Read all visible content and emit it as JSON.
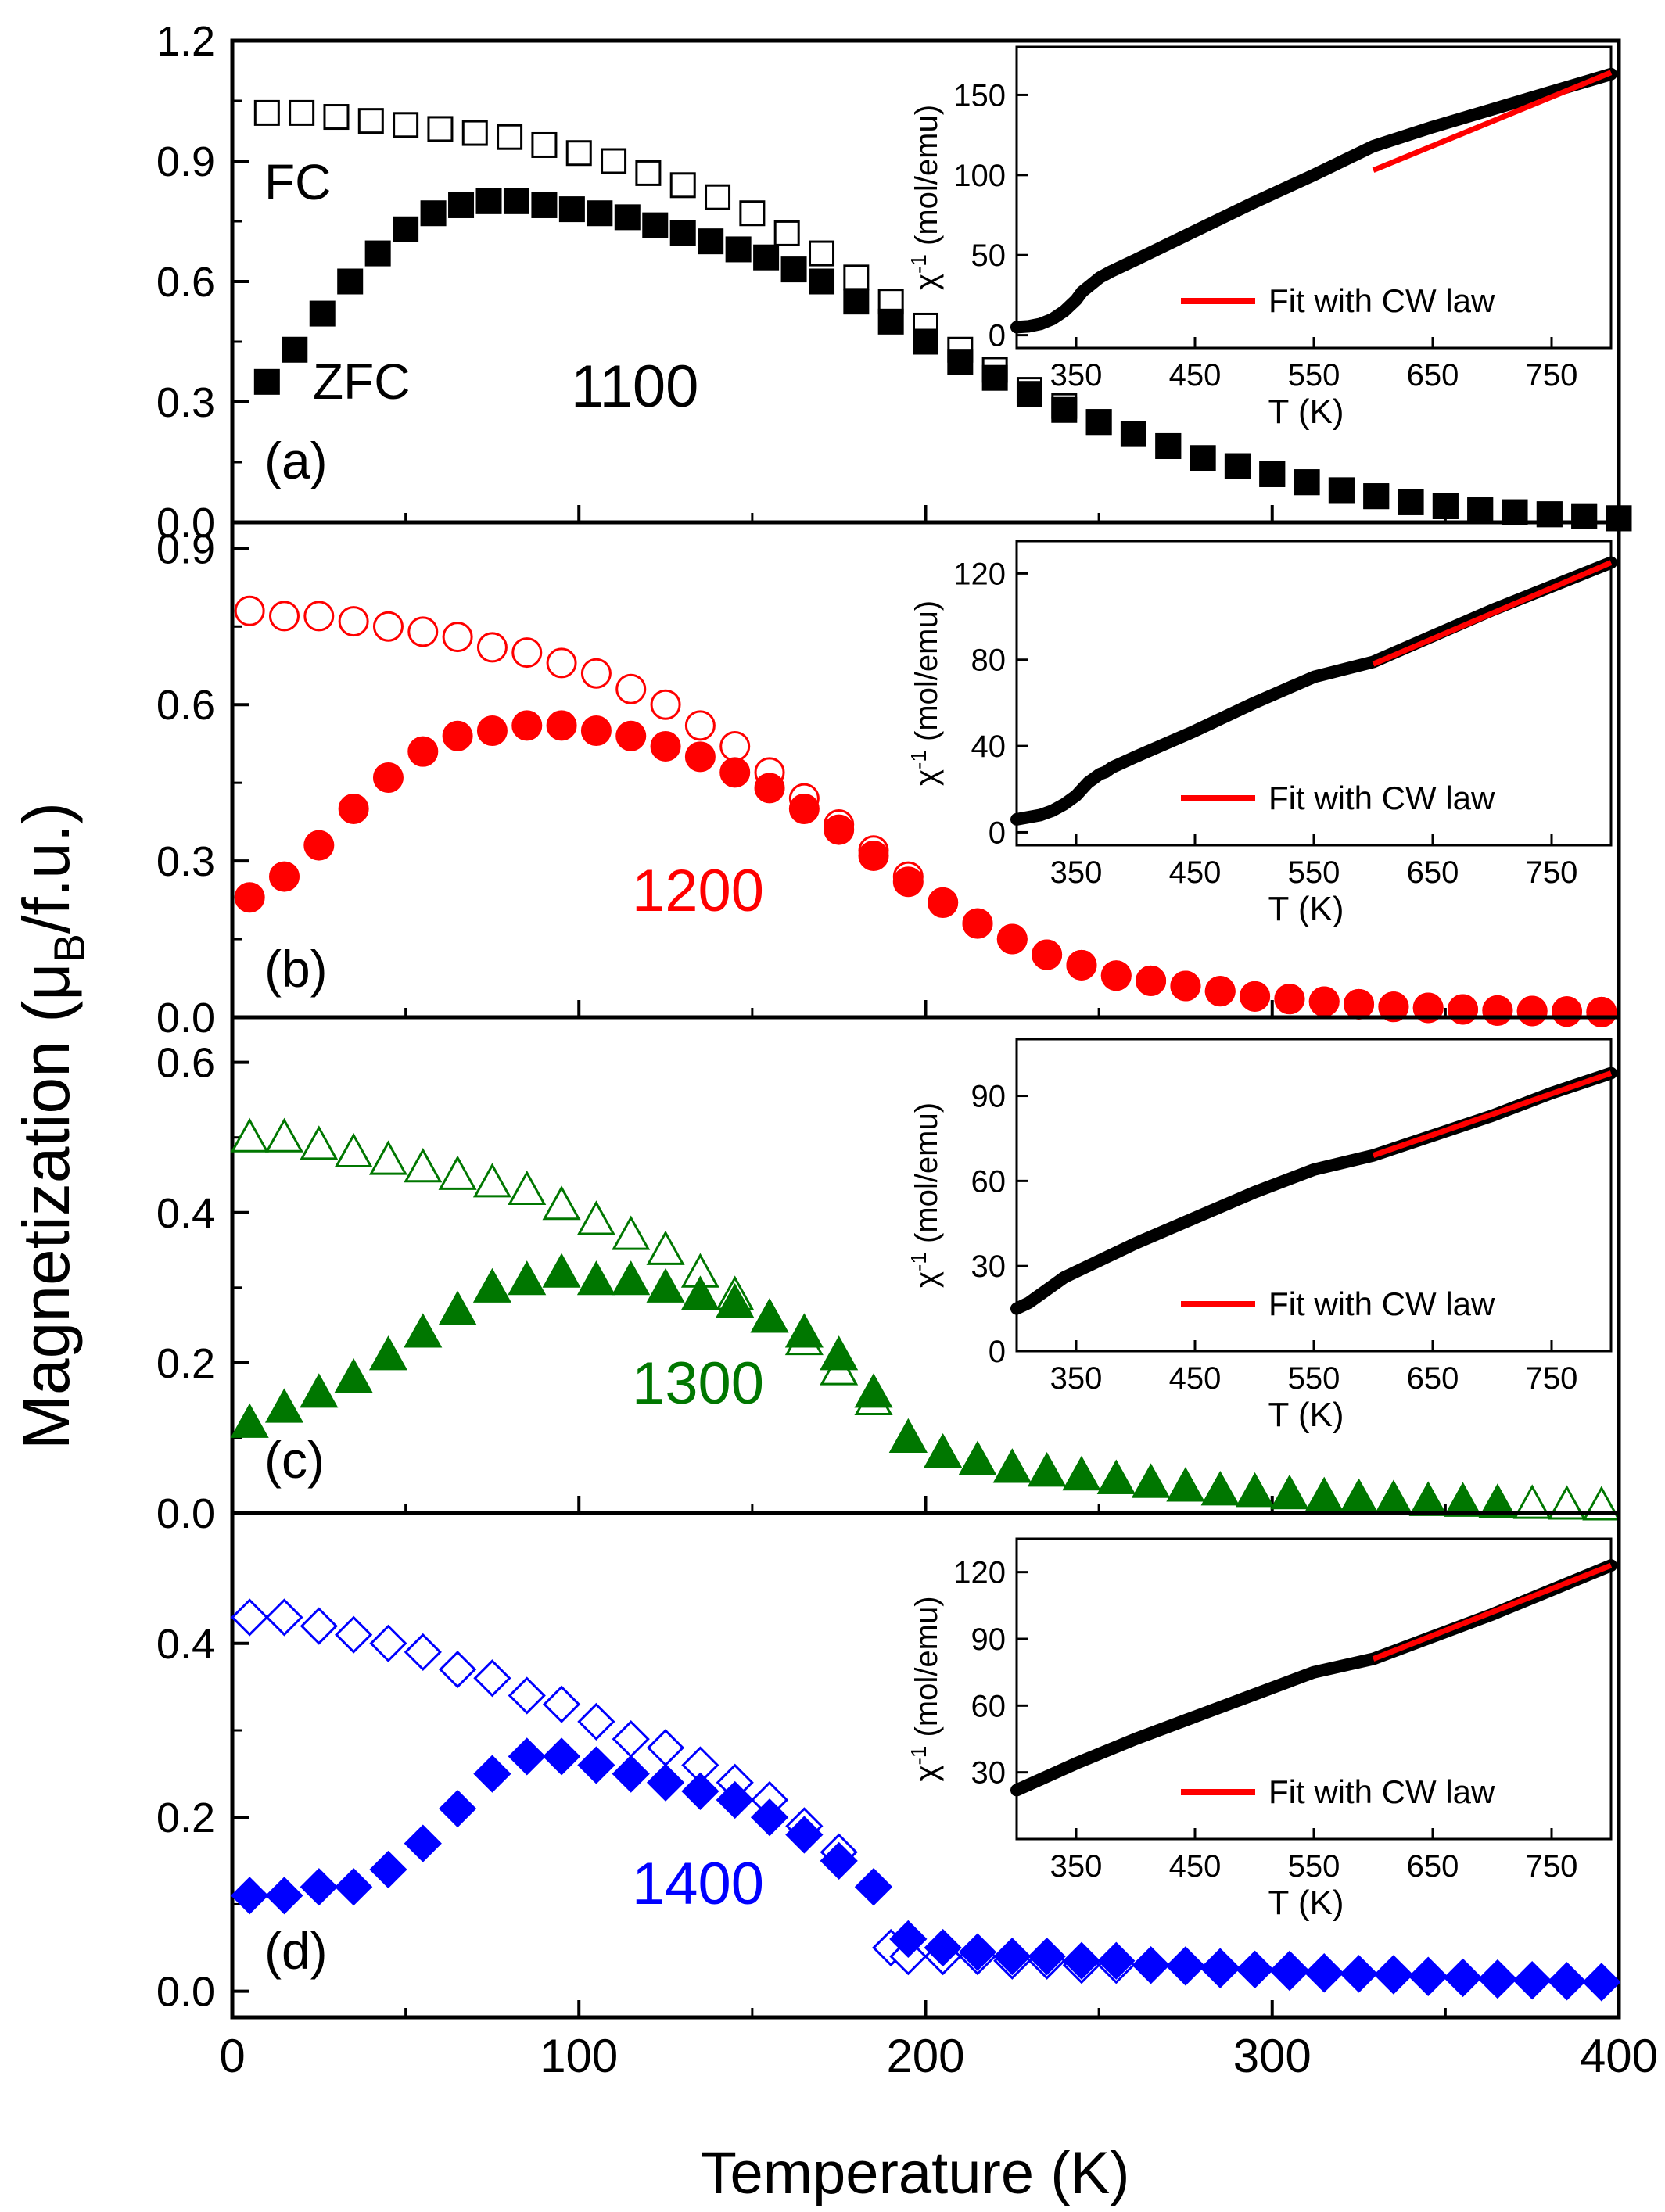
{
  "figure": {
    "ylabel_main": "Magnetization (",
    "ylabel_mu": "μ",
    "ylabel_sub": "B",
    "ylabel_tail": "/f.u.)",
    "xlabel": "Temperature (K)"
  },
  "chart_data": [
    {
      "panel": "(a)",
      "sample": "1100",
      "type": "scatter",
      "xlim": [
        0,
        400
      ],
      "ylim": [
        0,
        1.2
      ],
      "yticks": [
        "0.0",
        "0.3",
        "0.6",
        "0.9",
        "1.2"
      ],
      "xticks": [
        "0",
        "100",
        "200",
        "300",
        "400"
      ],
      "marker": "square",
      "color": "#000000",
      "labels": {
        "fc": "FC",
        "zfc": "ZFC"
      },
      "fc": {
        "x": [
          10,
          20,
          30,
          40,
          50,
          60,
          70,
          80,
          90,
          100,
          110,
          120,
          130,
          140,
          150,
          160,
          170,
          180,
          190,
          200,
          210,
          220,
          230,
          240,
          250,
          260,
          270,
          280,
          290,
          300,
          310,
          320,
          330,
          340,
          350,
          360,
          370,
          380,
          390,
          400
        ],
        "y": [
          1.02,
          1.02,
          1.01,
          1.0,
          0.99,
          0.98,
          0.97,
          0.96,
          0.94,
          0.92,
          0.9,
          0.87,
          0.84,
          0.81,
          0.77,
          0.72,
          0.67,
          0.61,
          0.55,
          0.49,
          0.43,
          0.38,
          0.33,
          0.29,
          0.25,
          0.22,
          0.19,
          0.16,
          0.14,
          0.12,
          0.1,
          0.08,
          0.065,
          0.05,
          0.04,
          0.03,
          0.025,
          0.02,
          0.015,
          0.01
        ]
      },
      "zfc": {
        "x": [
          10,
          18,
          26,
          34,
          42,
          50,
          58,
          66,
          74,
          82,
          90,
          98,
          106,
          114,
          122,
          130,
          138,
          146,
          154,
          162,
          170,
          180,
          190,
          200,
          210,
          220,
          230,
          240,
          250,
          260,
          270,
          280,
          290,
          300,
          310,
          320,
          330,
          340,
          350,
          360,
          370,
          380,
          390,
          400
        ],
        "y": [
          0.35,
          0.43,
          0.52,
          0.6,
          0.67,
          0.73,
          0.77,
          0.79,
          0.8,
          0.8,
          0.79,
          0.78,
          0.77,
          0.76,
          0.74,
          0.72,
          0.7,
          0.68,
          0.66,
          0.63,
          0.6,
          0.55,
          0.5,
          0.45,
          0.4,
          0.36,
          0.32,
          0.28,
          0.25,
          0.22,
          0.19,
          0.16,
          0.14,
          0.12,
          0.1,
          0.08,
          0.065,
          0.05,
          0.04,
          0.03,
          0.025,
          0.02,
          0.015,
          0.01
        ]
      },
      "inset": {
        "type": "line",
        "xlabel": "T (K)",
        "ylabel_base": "χ",
        "ylabel_sup": "-1",
        "ylabel_unit": "(mol/emu)",
        "xlim": [
          300,
          800
        ],
        "ylim": [
          -8,
          180
        ],
        "xticks": [
          350,
          450,
          550,
          650,
          750
        ],
        "yticks": [
          0,
          50,
          100,
          150
        ],
        "legend": "Fit with CW law",
        "fit_color": "#ff0000",
        "data_x": [
          300,
          310,
          320,
          330,
          340,
          350,
          355,
          360,
          365,
          370,
          375,
          380,
          400,
          450,
          500,
          550,
          600,
          650,
          700,
          750,
          800
        ],
        "data_y": [
          5,
          5.5,
          7,
          10,
          15,
          22,
          27,
          30,
          33,
          36,
          38,
          40,
          47,
          65,
          83,
          100,
          118,
          130,
          141,
          152,
          163
        ],
        "fit_x": [
          600,
          800
        ],
        "fit_y": [
          103,
          164
        ]
      }
    },
    {
      "panel": "(b)",
      "sample": "1200",
      "type": "scatter",
      "xlim": [
        0,
        400
      ],
      "ylim": [
        0,
        0.95
      ],
      "yticks": [
        "0.0",
        "0.3",
        "0.6",
        "0.9"
      ],
      "xticks": [
        "0",
        "100",
        "200",
        "300",
        "400"
      ],
      "marker": "circle",
      "color": "#ff0000",
      "fc": {
        "x": [
          5,
          15,
          25,
          35,
          45,
          55,
          65,
          75,
          85,
          95,
          105,
          115,
          125,
          135,
          145,
          155,
          165,
          175,
          185,
          195,
          205,
          215,
          225,
          235,
          245,
          255,
          265,
          275,
          285,
          295,
          305,
          315,
          325,
          335,
          345,
          355,
          365,
          375,
          385,
          395
        ],
        "y": [
          0.78,
          0.77,
          0.77,
          0.76,
          0.75,
          0.74,
          0.73,
          0.71,
          0.7,
          0.68,
          0.66,
          0.63,
          0.6,
          0.56,
          0.52,
          0.47,
          0.42,
          0.37,
          0.32,
          0.27,
          0.22,
          0.18,
          0.15,
          0.12,
          0.1,
          0.08,
          0.07,
          0.06,
          0.05,
          0.04,
          0.035,
          0.03,
          0.025,
          0.02,
          0.018,
          0.015,
          0.013,
          0.012,
          0.011,
          0.01
        ]
      },
      "zfc": {
        "x": [
          5,
          15,
          25,
          35,
          45,
          55,
          65,
          75,
          85,
          95,
          105,
          115,
          125,
          135,
          145,
          155,
          165,
          175,
          185,
          195,
          205,
          215,
          225,
          235,
          245,
          255,
          265,
          275,
          285,
          295,
          305,
          315,
          325,
          335,
          345,
          355,
          365,
          375,
          385,
          395
        ],
        "y": [
          0.23,
          0.27,
          0.33,
          0.4,
          0.46,
          0.51,
          0.54,
          0.55,
          0.56,
          0.56,
          0.55,
          0.54,
          0.52,
          0.5,
          0.47,
          0.44,
          0.4,
          0.36,
          0.31,
          0.26,
          0.22,
          0.18,
          0.15,
          0.12,
          0.1,
          0.08,
          0.07,
          0.06,
          0.05,
          0.04,
          0.035,
          0.03,
          0.025,
          0.02,
          0.018,
          0.015,
          0.013,
          0.012,
          0.011,
          0.01
        ]
      },
      "inset": {
        "type": "line",
        "xlabel": "T (K)",
        "ylabel_base": "χ",
        "ylabel_sup": "-1",
        "ylabel_unit": "(mol/emu)",
        "xlim": [
          300,
          800
        ],
        "ylim": [
          -6,
          135
        ],
        "xticks": [
          350,
          450,
          550,
          650,
          750
        ],
        "yticks": [
          0,
          40,
          80,
          120
        ],
        "legend": "Fit with CW law",
        "fit_color": "#ff0000",
        "data_x": [
          300,
          310,
          320,
          330,
          340,
          350,
          355,
          360,
          365,
          370,
          375,
          380,
          400,
          450,
          500,
          550,
          600,
          650,
          700,
          750,
          800
        ],
        "data_y": [
          6,
          7,
          8,
          10,
          13,
          17,
          20,
          23,
          25,
          27,
          28,
          30,
          35,
          47,
          60,
          72,
          79,
          91,
          103,
          114,
          125
        ],
        "fit_x": [
          600,
          800
        ],
        "fit_y": [
          78,
          125
        ]
      }
    },
    {
      "panel": "(c)",
      "sample": "1300",
      "type": "scatter",
      "xlim": [
        0,
        400
      ],
      "ylim": [
        0,
        0.66
      ],
      "yticks": [
        "0.0",
        "0.2",
        "0.4",
        "0.6"
      ],
      "xticks": [
        "0",
        "100",
        "200",
        "300",
        "400"
      ],
      "marker": "triangle",
      "color": "#007700",
      "fc": {
        "x": [
          5,
          15,
          25,
          35,
          45,
          55,
          65,
          75,
          85,
          95,
          105,
          115,
          125,
          135,
          145,
          155,
          165,
          175,
          185,
          195,
          205,
          215,
          225,
          235,
          245,
          255,
          265,
          275,
          285,
          295,
          305,
          315,
          325,
          335,
          345,
          355,
          365,
          375,
          385,
          395
        ],
        "y": [
          0.5,
          0.5,
          0.49,
          0.48,
          0.47,
          0.46,
          0.45,
          0.44,
          0.43,
          0.41,
          0.39,
          0.37,
          0.35,
          0.32,
          0.29,
          0.26,
          0.23,
          0.19,
          0.15,
          0.1,
          0.08,
          0.07,
          0.06,
          0.055,
          0.05,
          0.045,
          0.04,
          0.035,
          0.03,
          0.028,
          0.025,
          0.022,
          0.02,
          0.018,
          0.016,
          0.015,
          0.013,
          0.012,
          0.011,
          0.01
        ]
      },
      "zfc": {
        "x": [
          5,
          15,
          25,
          35,
          45,
          55,
          65,
          75,
          85,
          95,
          105,
          115,
          125,
          135,
          145,
          155,
          165,
          175,
          185,
          195,
          205,
          215,
          225,
          235,
          245,
          255,
          265,
          275,
          285,
          295,
          305,
          315,
          325,
          335,
          345,
          355,
          365
        ],
        "y": [
          0.12,
          0.14,
          0.16,
          0.18,
          0.21,
          0.24,
          0.27,
          0.3,
          0.31,
          0.32,
          0.31,
          0.31,
          0.3,
          0.29,
          0.28,
          0.26,
          0.24,
          0.21,
          0.16,
          0.1,
          0.08,
          0.07,
          0.06,
          0.055,
          0.05,
          0.045,
          0.04,
          0.035,
          0.03,
          0.028,
          0.025,
          0.022,
          0.02,
          0.018,
          0.016,
          0.015,
          0.013
        ]
      },
      "inset": {
        "type": "line",
        "xlabel": "T (K)",
        "ylabel_base": "χ",
        "ylabel_sup": "-1",
        "ylabel_unit": "(mol/emu)",
        "xlim": [
          300,
          800
        ],
        "ylim": [
          0,
          110
        ],
        "xticks": [
          350,
          450,
          550,
          650,
          750
        ],
        "yticks": [
          0,
          30,
          60,
          90
        ],
        "legend": "Fit with CW law",
        "fit_color": "#ff0000",
        "data_x": [
          300,
          310,
          320,
          330,
          340,
          350,
          360,
          370,
          380,
          400,
          450,
          500,
          550,
          600,
          650,
          700,
          750,
          800
        ],
        "data_y": [
          15,
          17,
          20,
          23,
          26,
          28,
          30,
          32,
          34,
          38,
          47,
          56,
          64,
          69,
          76,
          83,
          91,
          98
        ],
        "fit_x": [
          600,
          800
        ],
        "fit_y": [
          69,
          98
        ]
      }
    },
    {
      "panel": "(d)",
      "sample": "1400",
      "type": "scatter",
      "xlim": [
        0,
        400
      ],
      "ylim": [
        -0.03,
        0.55
      ],
      "yticks": [
        "0.0",
        "0.2",
        "0.4"
      ],
      "xticks": [
        "0",
        "100",
        "200",
        "300",
        "400"
      ],
      "marker": "diamond",
      "color": "#0000ff",
      "fc": {
        "x": [
          5,
          15,
          25,
          35,
          45,
          55,
          65,
          75,
          85,
          95,
          105,
          115,
          125,
          135,
          145,
          155,
          165,
          175,
          185,
          190,
          195,
          205,
          215,
          225,
          235,
          245,
          255,
          265,
          275,
          285,
          295,
          305,
          315,
          325,
          335,
          345,
          355,
          365,
          375,
          385,
          395
        ],
        "y": [
          0.43,
          0.43,
          0.42,
          0.41,
          0.4,
          0.39,
          0.37,
          0.36,
          0.34,
          0.33,
          0.31,
          0.29,
          0.28,
          0.26,
          0.24,
          0.22,
          0.19,
          0.16,
          0.12,
          0.05,
          0.04,
          0.04,
          0.04,
          0.035,
          0.035,
          0.03,
          0.03,
          0.03,
          0.028,
          0.025,
          0.025,
          0.022,
          0.02,
          0.02,
          0.018,
          0.016,
          0.015,
          0.013,
          0.012,
          0.011,
          0.01
        ]
      },
      "zfc": {
        "x": [
          5,
          15,
          25,
          35,
          45,
          55,
          65,
          75,
          85,
          95,
          105,
          115,
          125,
          135,
          145,
          155,
          165,
          175,
          185,
          195,
          205,
          215,
          225,
          235,
          245,
          255,
          265,
          275,
          285,
          295,
          305,
          315,
          325,
          335,
          345,
          355,
          365,
          375,
          385,
          395
        ],
        "y": [
          0.11,
          0.11,
          0.12,
          0.12,
          0.14,
          0.17,
          0.21,
          0.25,
          0.27,
          0.27,
          0.26,
          0.25,
          0.24,
          0.23,
          0.22,
          0.2,
          0.18,
          0.15,
          0.12,
          0.06,
          0.05,
          0.045,
          0.04,
          0.04,
          0.035,
          0.035,
          0.03,
          0.03,
          0.028,
          0.025,
          0.025,
          0.022,
          0.02,
          0.02,
          0.018,
          0.016,
          0.015,
          0.013,
          0.012,
          0.011
        ]
      },
      "inset": {
        "type": "line",
        "xlabel": "T (K)",
        "ylabel_base": "χ",
        "ylabel_sup": "-1",
        "ylabel_unit": "(mol/emu)",
        "xlim": [
          300,
          800
        ],
        "ylim": [
          0,
          135
        ],
        "xticks": [
          350,
          450,
          550,
          650,
          750
        ],
        "yticks": [
          30,
          60,
          90,
          120
        ],
        "legend": "Fit with CW law",
        "fit_color": "#ff0000",
        "data_x": [
          300,
          350,
          400,
          450,
          500,
          550,
          600,
          650,
          700,
          750,
          800
        ],
        "data_y": [
          22,
          34,
          45,
          55,
          65,
          75,
          81,
          91,
          101,
          112,
          123
        ],
        "fit_x": [
          600,
          800
        ],
        "fit_y": [
          81,
          123
        ]
      }
    }
  ]
}
